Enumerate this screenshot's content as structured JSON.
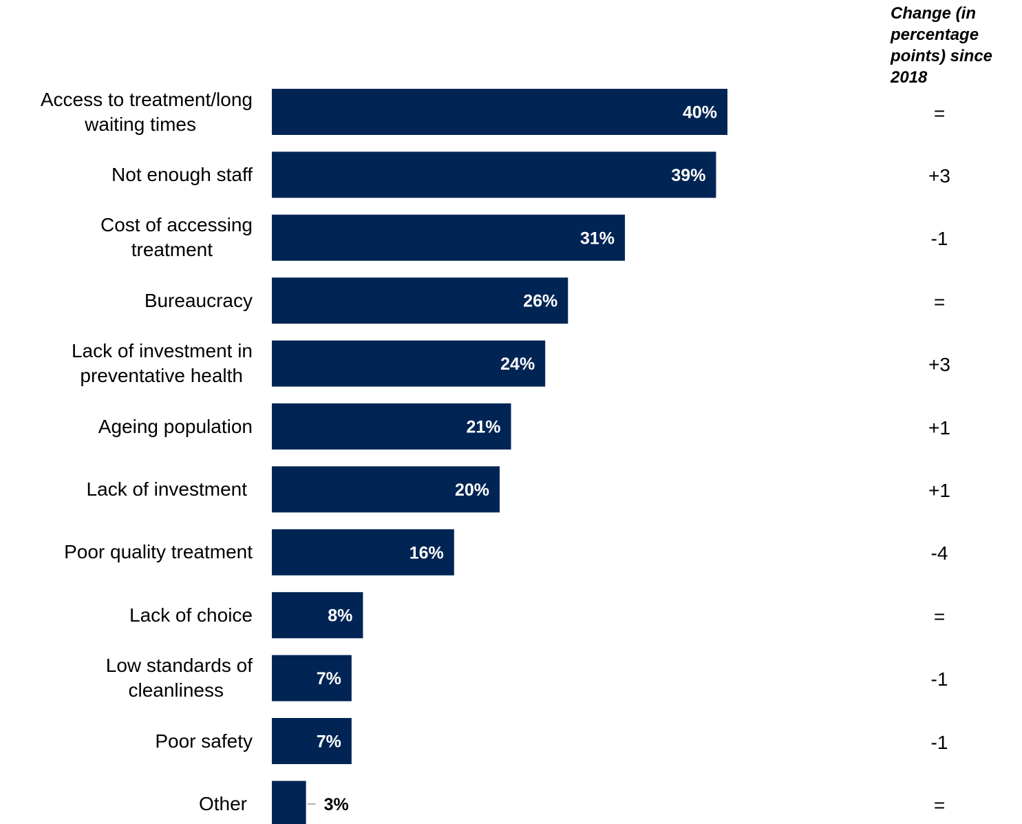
{
  "chart_data": {
    "type": "bar",
    "orientation": "horizontal",
    "categories": [
      "Access to treatment/long waiting times",
      "Not enough staff",
      "Cost of accessing treatment",
      "Bureaucracy",
      "Lack of investment in preventative health",
      "Ageing population",
      "Lack of investment",
      "Poor quality treatment",
      "Lack of choice",
      "Low standards of cleanliness",
      "Poor safety",
      "Other"
    ],
    "category_lines": [
      [
        "Access to treatment/long",
        "waiting times"
      ],
      [
        "Not enough staff"
      ],
      [
        "Cost of accessing",
        "treatment"
      ],
      [
        "Bureaucracy"
      ],
      [
        "Lack of investment in",
        "preventative health"
      ],
      [
        "Ageing population"
      ],
      [
        "Lack of investment"
      ],
      [
        "Poor quality treatment"
      ],
      [
        "Lack of choice"
      ],
      [
        "Low standards of",
        "cleanliness"
      ],
      [
        "Poor safety"
      ],
      [
        "Other"
      ]
    ],
    "values": [
      40,
      39,
      31,
      26,
      24,
      21,
      20,
      16,
      8,
      7,
      7,
      3
    ],
    "value_labels": [
      "40%",
      "39%",
      "31%",
      "26%",
      "24%",
      "21%",
      "20%",
      "16%",
      "8%",
      "7%",
      "7%",
      "3%"
    ],
    "change_header": "Change (in percentage points) since 2018",
    "changes": [
      "=",
      "+3",
      "-1",
      "=",
      "+3",
      "+1",
      "+1",
      "-4",
      "=",
      "-1",
      "-1",
      "="
    ],
    "xlim": [
      0,
      40
    ],
    "grid": false,
    "legend": "none",
    "bar_color": "#002554",
    "inside_label_color": "#ffffff",
    "outside_label_color": "#000000"
  }
}
